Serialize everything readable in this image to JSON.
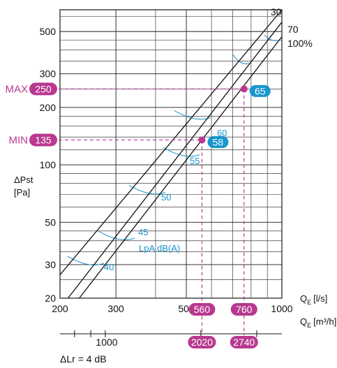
{
  "chart_data": {
    "type": "line",
    "x_axis_top": {
      "label_main": "Q",
      "label_sub": "E",
      "unit": "[l/s]",
      "scale": "log",
      "ticks": [
        200,
        300,
        500,
        1000
      ],
      "range": [
        200,
        1000
      ]
    },
    "x_axis_bottom": {
      "label_main": "Q",
      "label_sub": "E",
      "unit": "[m³/h]",
      "tick": 1000
    },
    "y_axis": {
      "label": "ΔPst",
      "unit": "[Pa]",
      "scale": "log",
      "ticks": [
        20,
        30,
        50,
        100,
        200,
        300,
        500
      ],
      "range": [
        20,
        650
      ]
    },
    "series": [
      {
        "name": "30",
        "points": [
          [
            200,
            26.5
          ],
          [
            1000,
            650
          ]
        ]
      },
      {
        "name": "70",
        "points": [
          [
            212,
            20
          ],
          [
            1000,
            560
          ]
        ]
      },
      {
        "name": "100%",
        "points": [
          [
            230,
            20
          ],
          [
            1000,
            470
          ]
        ]
      }
    ],
    "sound_curves": {
      "caption": "LpA dB(A)",
      "labels": [
        "40",
        "45",
        "50",
        "55",
        "60"
      ],
      "label_points": [
        [
          272,
          31
        ],
        [
          340,
          42
        ],
        [
          425,
          73
        ],
        [
          545,
          115
        ],
        [
          590,
          180
        ]
      ]
    },
    "operating_points": [
      {
        "name": "MIN",
        "pressure": "135",
        "flow_ls": "560",
        "flow_m3h": "2020",
        "sound": "58",
        "x": 560,
        "y": 135
      },
      {
        "name": "MAX",
        "pressure": "250",
        "flow_ls": "760",
        "flow_m3h": "2740",
        "sound": "65",
        "x": 760,
        "y": 250
      }
    ],
    "grid": true,
    "footnote": "ΔLr = 4 dB"
  },
  "colors": {
    "magenta": "#b8398f",
    "cyan": "#1a95cf"
  }
}
